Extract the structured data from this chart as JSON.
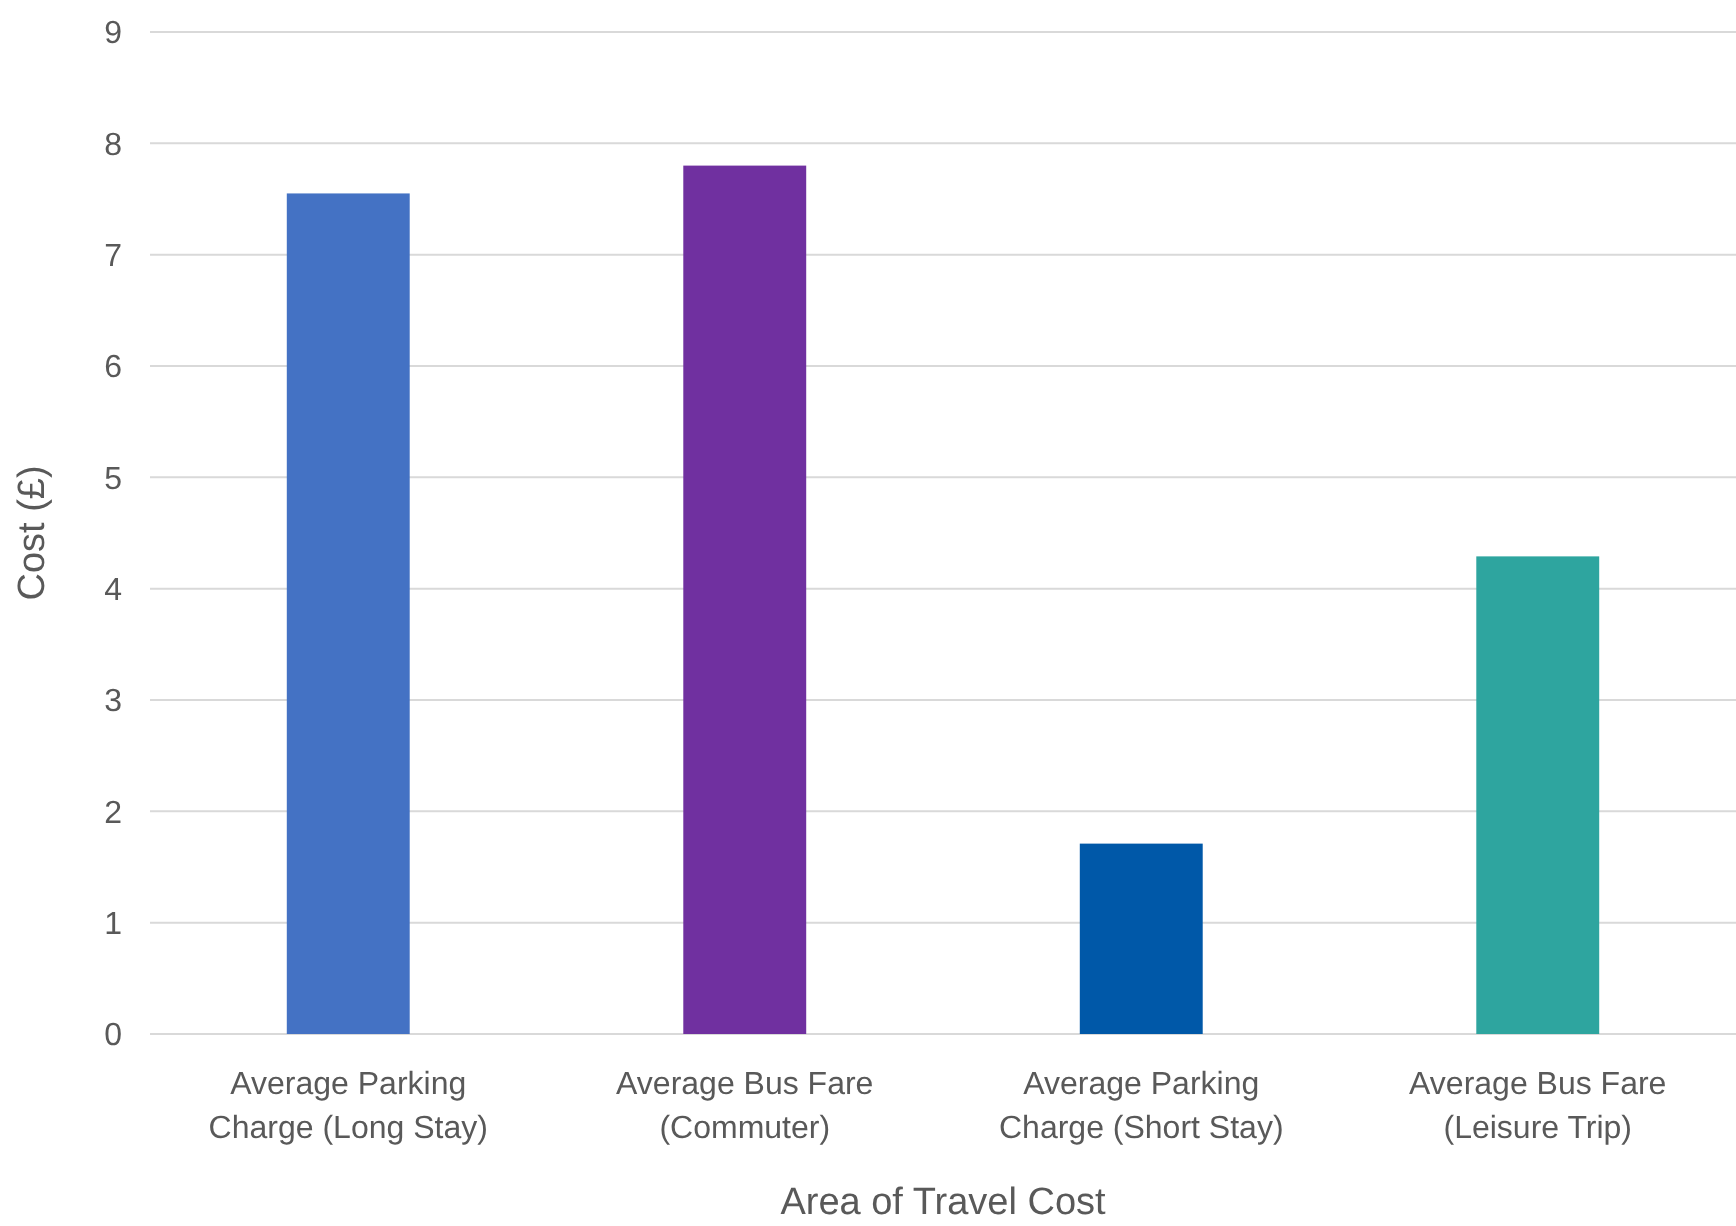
{
  "chart_data": {
    "type": "bar",
    "xlabel": "Area of Travel Cost",
    "ylabel": "Cost (£)",
    "categories": [
      "Average Parking Charge (Long Stay)",
      "Average Bus Fare (Commuter)",
      "Average Parking Charge (Short Stay)",
      "Average Bus Fare (Leisure Trip)"
    ],
    "values": [
      7.55,
      7.8,
      1.71,
      4.29
    ],
    "colors": [
      "#4472c4",
      "#7030a0",
      "#0058a8",
      "#2ea59f"
    ],
    "ylim": [
      0,
      9
    ],
    "yticks": [
      0,
      1,
      2,
      3,
      4,
      5,
      6,
      7,
      8,
      9
    ],
    "grid": "y"
  }
}
